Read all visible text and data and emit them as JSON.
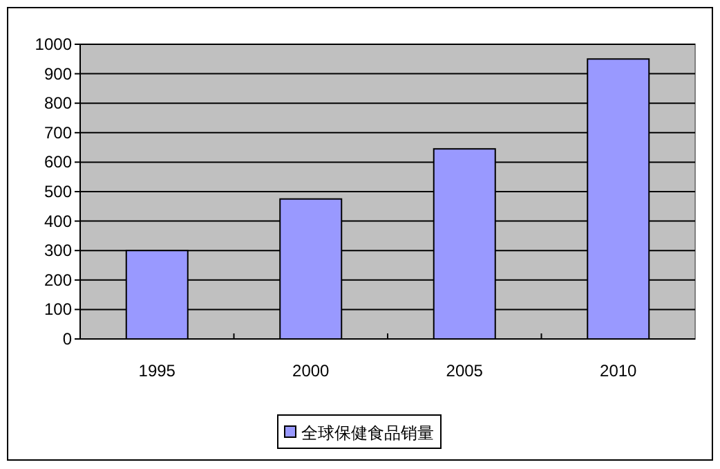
{
  "chart_data": {
    "type": "bar",
    "categories": [
      "1995",
      "2000",
      "2005",
      "2010"
    ],
    "series": [
      {
        "name": "全球保健食品销量",
        "color": "#9999ff",
        "values": [
          300,
          475,
          645,
          950
        ]
      }
    ],
    "ylim": [
      0,
      1000
    ],
    "yticks": [
      0,
      100,
      200,
      300,
      400,
      500,
      600,
      700,
      800,
      900,
      1000
    ],
    "grid": "y",
    "legend": "bottom"
  }
}
